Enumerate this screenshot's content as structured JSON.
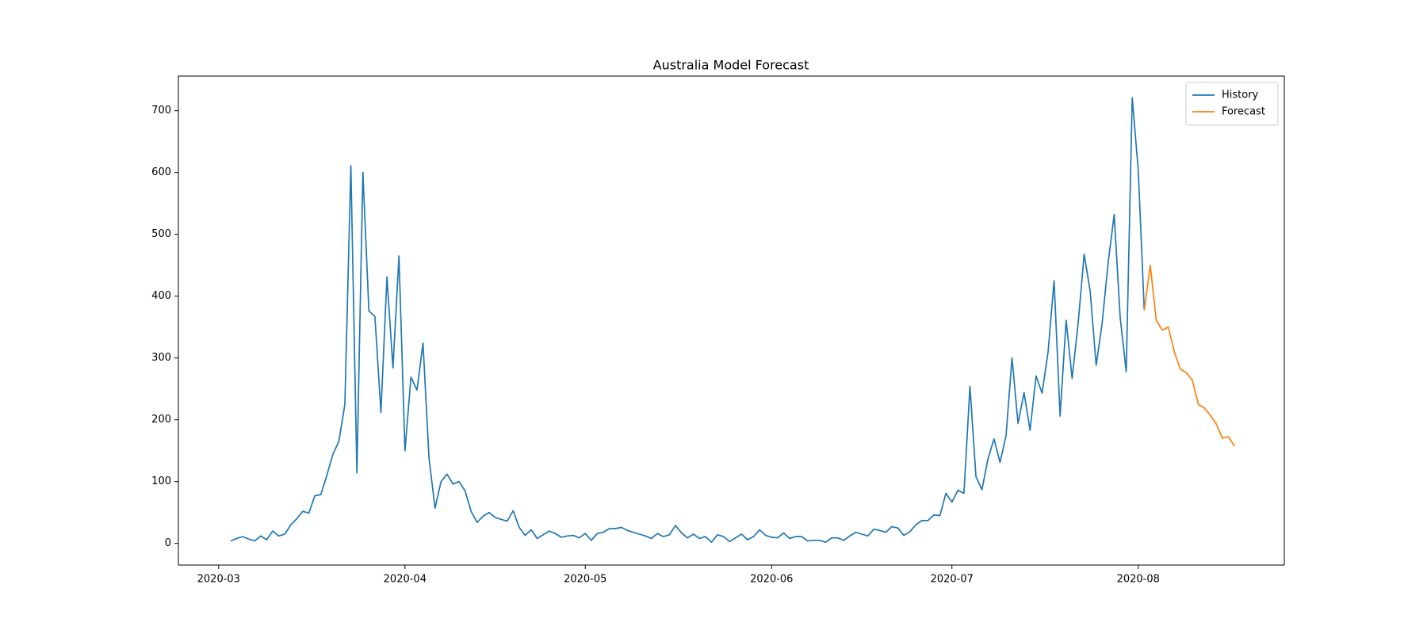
{
  "chart_data": {
    "type": "line",
    "title": "Australia Model Forecast",
    "categories": [
      "2020-03",
      null,
      null,
      null,
      null,
      null,
      null,
      null,
      null,
      null,
      null,
      null,
      null,
      null,
      null,
      null,
      null,
      null,
      null,
      null,
      null,
      null,
      null,
      null,
      null,
      null,
      null,
      null,
      null,
      null,
      null,
      "2020-04",
      null,
      null,
      null,
      null,
      null,
      null,
      null,
      null,
      null,
      null,
      null,
      null,
      null,
      null,
      null,
      null,
      null,
      null,
      null,
      null,
      null,
      null,
      null,
      null,
      null,
      null,
      null,
      null,
      null,
      "2020-05",
      null,
      null,
      null,
      null,
      null,
      null,
      null,
      null,
      null,
      null,
      null,
      null,
      null,
      null,
      null,
      null,
      null,
      null,
      null,
      null,
      null,
      null,
      null,
      null,
      null,
      null,
      null,
      null,
      null,
      null,
      "2020-06",
      null,
      null,
      null,
      null,
      null,
      null,
      null,
      null,
      null,
      null,
      null,
      null,
      null,
      null,
      null,
      null,
      null,
      null,
      null,
      null,
      null,
      null,
      null,
      null,
      null,
      null,
      null,
      null,
      null,
      "2020-07",
      null,
      null,
      null,
      null,
      null,
      null,
      null,
      null,
      null,
      null,
      null,
      null,
      null,
      null,
      null,
      null,
      null,
      null,
      null,
      null,
      null,
      null,
      null,
      null,
      null,
      null,
      null,
      null,
      null,
      null,
      "2020-08",
      null,
      null,
      null,
      null,
      null,
      null,
      null,
      null,
      null,
      null,
      null,
      null,
      null,
      null,
      null,
      null
    ],
    "series": [
      {
        "name": "History",
        "color": "#1f77b4",
        "values": [
          null,
          null,
          4,
          8,
          11,
          7,
          4,
          12,
          6,
          20,
          12,
          15,
          30,
          40,
          52,
          49,
          77,
          79,
          110,
          144,
          165,
          225,
          611,
          114,
          600,
          376,
          367,
          212,
          431,
          284,
          465,
          150,
          269,
          248,
          324,
          138,
          57,
          100,
          112,
          96,
          100,
          85,
          52,
          34,
          44,
          50,
          42,
          39,
          36,
          53,
          26,
          13,
          22,
          8,
          14,
          20,
          16,
          10,
          12,
          13,
          9,
          16,
          5,
          16,
          18,
          24,
          24,
          26,
          21,
          18,
          15,
          12,
          8,
          16,
          11,
          14,
          29,
          17,
          9,
          15,
          8,
          11,
          2,
          14,
          11,
          3,
          9,
          15,
          6,
          11,
          22,
          13,
          10,
          9,
          17,
          8,
          11,
          11,
          4,
          5,
          5,
          2,
          9,
          9,
          5,
          12,
          18,
          15,
          12,
          23,
          21,
          18,
          27,
          25,
          13,
          19,
          30,
          37,
          37,
          46,
          45,
          81,
          67,
          86,
          81,
          254,
          108,
          87,
          137,
          169,
          131,
          174,
          300,
          194,
          244,
          183,
          271,
          243,
          310,
          425,
          206,
          361,
          267,
          356,
          468,
          408,
          288,
          357,
          455,
          532,
          365,
          278,
          721,
          604,
          377,
          null,
          null,
          null,
          null,
          null,
          null,
          null,
          null,
          null,
          null,
          null,
          null,
          null,
          null,
          null
        ]
      },
      {
        "name": "Forecast",
        "color": "#ff7f0e",
        "values": [
          null,
          null,
          null,
          null,
          null,
          null,
          null,
          null,
          null,
          null,
          null,
          null,
          null,
          null,
          null,
          null,
          null,
          null,
          null,
          null,
          null,
          null,
          null,
          null,
          null,
          null,
          null,
          null,
          null,
          null,
          null,
          null,
          null,
          null,
          null,
          null,
          null,
          null,
          null,
          null,
          null,
          null,
          null,
          null,
          null,
          null,
          null,
          null,
          null,
          null,
          null,
          null,
          null,
          null,
          null,
          null,
          null,
          null,
          null,
          null,
          null,
          null,
          null,
          null,
          null,
          null,
          null,
          null,
          null,
          null,
          null,
          null,
          null,
          null,
          null,
          null,
          null,
          null,
          null,
          null,
          null,
          null,
          null,
          null,
          null,
          null,
          null,
          null,
          null,
          null,
          null,
          null,
          null,
          null,
          null,
          null,
          null,
          null,
          null,
          null,
          null,
          null,
          null,
          null,
          null,
          null,
          null,
          null,
          null,
          null,
          null,
          null,
          null,
          null,
          null,
          null,
          null,
          null,
          null,
          null,
          null,
          null,
          null,
          null,
          null,
          null,
          null,
          null,
          null,
          null,
          null,
          null,
          null,
          null,
          null,
          null,
          null,
          null,
          null,
          null,
          null,
          null,
          null,
          null,
          null,
          null,
          null,
          null,
          null,
          null,
          null,
          null,
          null,
          null,
          377,
          450,
          361,
          345,
          350,
          310,
          282,
          276,
          264,
          225,
          219,
          207,
          193,
          170,
          173,
          157
        ]
      }
    ],
    "ylim": [
      -35,
      756
    ],
    "yticks": [
      0,
      100,
      200,
      300,
      400,
      500,
      600,
      700
    ],
    "grid": false,
    "legend": "upper-right"
  }
}
